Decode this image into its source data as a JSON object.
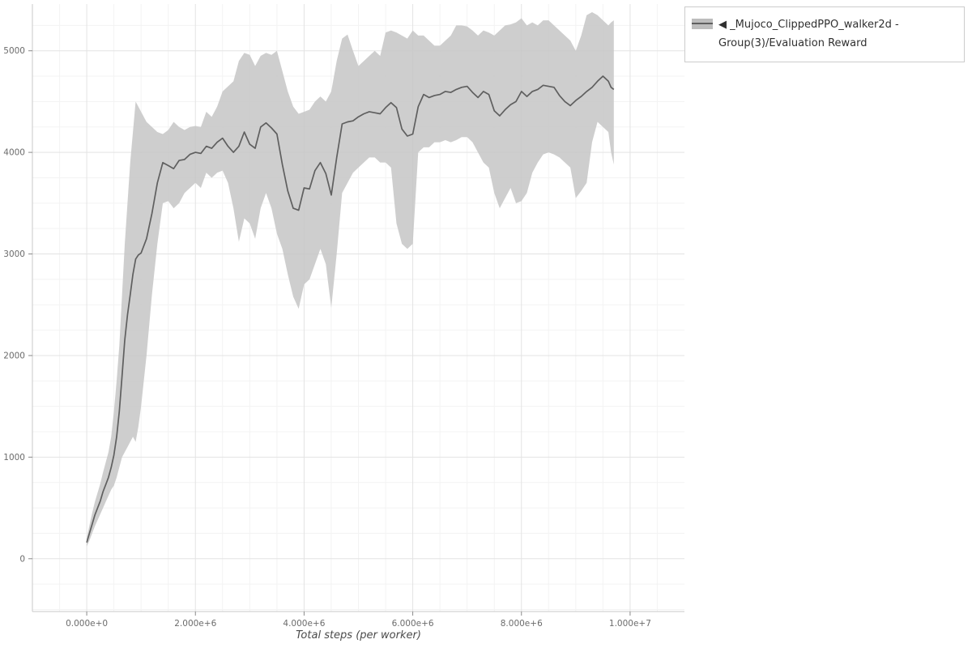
{
  "page": {
    "background": "#ffffff"
  },
  "legend": {
    "label": "◀ _Mujoco_ClippedPPO_walker2d - Group(3)/Evaluation Reward"
  },
  "chart_data": {
    "type": "line",
    "title": "",
    "xlabel": "Total steps (per worker)",
    "ylabel": "",
    "legend_position": "top-right-outside",
    "grid": true,
    "xlim_steps_millions": [
      -1,
      11
    ],
    "ylim": [
      -520,
      5460
    ],
    "x_tick_values_millions": [
      0,
      2,
      4,
      6,
      8,
      10
    ],
    "x_tick_labels": [
      "0.000e+0",
      "2.000e+6",
      "4.000e+6",
      "6.000e+6",
      "8.000e+6",
      "1.000e+7"
    ],
    "y_tick_values": [
      0,
      1000,
      2000,
      3000,
      4000,
      5000
    ],
    "y_tick_labels": [
      "0",
      "1000",
      "2000",
      "3000",
      "4000",
      "5000"
    ],
    "colors": {
      "mean_line": "#5f5f5f",
      "band_fill": "#c6c6c6",
      "grid_major": "#e3e3e3",
      "grid_minor": "#f3f3f3",
      "axis_line": "#c9c9c9",
      "tick_mark": "#8a8a8a",
      "tick_label": "#6b6b6b",
      "axis_title": "#4a4a4a"
    },
    "series": [
      {
        "name": "_Mujoco_ClippedPPO_walker2d - Group(3)/Evaluation Reward",
        "x_steps_millions": [
          0,
          0.05,
          0.1,
          0.15,
          0.2,
          0.25,
          0.3,
          0.35,
          0.4,
          0.45,
          0.5,
          0.55,
          0.6,
          0.65,
          0.7,
          0.75,
          0.8,
          0.85,
          0.9,
          0.95,
          1.0,
          1.1,
          1.2,
          1.3,
          1.4,
          1.5,
          1.6,
          1.7,
          1.8,
          1.9,
          2.0,
          2.1,
          2.2,
          2.3,
          2.4,
          2.5,
          2.6,
          2.7,
          2.8,
          2.9,
          3.0,
          3.1,
          3.2,
          3.3,
          3.4,
          3.5,
          3.6,
          3.7,
          3.8,
          3.9,
          4.0,
          4.1,
          4.2,
          4.3,
          4.4,
          4.5,
          4.6,
          4.7,
          4.8,
          4.9,
          5.0,
          5.1,
          5.2,
          5.3,
          5.4,
          5.5,
          5.6,
          5.7,
          5.8,
          5.9,
          6.0,
          6.1,
          6.2,
          6.3,
          6.4,
          6.5,
          6.6,
          6.7,
          6.8,
          6.9,
          7.0,
          7.1,
          7.2,
          7.3,
          7.4,
          7.5,
          7.6,
          7.7,
          7.8,
          7.9,
          8.0,
          8.1,
          8.2,
          8.3,
          8.4,
          8.5,
          8.6,
          8.7,
          8.8,
          8.9,
          9.0,
          9.1,
          9.2,
          9.3,
          9.4,
          9.5,
          9.6,
          9.65,
          9.7
        ],
        "mean": [
          160,
          250,
          340,
          430,
          500,
          570,
          660,
          730,
          800,
          900,
          1020,
          1200,
          1450,
          1800,
          2150,
          2400,
          2600,
          2800,
          2950,
          2990,
          3010,
          3150,
          3400,
          3700,
          3900,
          3870,
          3840,
          3920,
          3930,
          3980,
          4000,
          3990,
          4060,
          4040,
          4100,
          4140,
          4060,
          4000,
          4060,
          4200,
          4080,
          4040,
          4250,
          4290,
          4240,
          4180,
          3880,
          3620,
          3450,
          3430,
          3650,
          3640,
          3820,
          3900,
          3790,
          3580,
          3950,
          4280,
          4300,
          4310,
          4350,
          4380,
          4400,
          4390,
          4380,
          4440,
          4490,
          4440,
          4230,
          4160,
          4180,
          4450,
          4570,
          4540,
          4560,
          4570,
          4600,
          4590,
          4620,
          4640,
          4650,
          4590,
          4540,
          4600,
          4570,
          4410,
          4360,
          4420,
          4470,
          4500,
          4600,
          4550,
          4600,
          4620,
          4660,
          4650,
          4640,
          4560,
          4500,
          4460,
          4510,
          4550,
          4600,
          4640,
          4700,
          4750,
          4700,
          4640,
          4620
        ],
        "band_lower": [
          120,
          180,
          250,
          320,
          380,
          440,
          500,
          560,
          620,
          680,
          720,
          800,
          900,
          1000,
          1050,
          1100,
          1150,
          1200,
          1150,
          1300,
          1500,
          2000,
          2600,
          3100,
          3500,
          3520,
          3450,
          3500,
          3600,
          3650,
          3700,
          3650,
          3800,
          3750,
          3800,
          3820,
          3700,
          3450,
          3120,
          3350,
          3300,
          3150,
          3450,
          3600,
          3450,
          3200,
          3050,
          2800,
          2580,
          2460,
          2700,
          2750,
          2900,
          3050,
          2900,
          2470,
          3000,
          3600,
          3700,
          3800,
          3850,
          3900,
          3950,
          3950,
          3900,
          3900,
          3850,
          3300,
          3100,
          3050,
          3100,
          4000,
          4050,
          4050,
          4100,
          4100,
          4120,
          4100,
          4120,
          4150,
          4150,
          4100,
          4000,
          3900,
          3850,
          3600,
          3450,
          3550,
          3650,
          3500,
          3520,
          3600,
          3800,
          3900,
          3980,
          4000,
          3980,
          3950,
          3900,
          3850,
          3550,
          3620,
          3700,
          4100,
          4300,
          4250,
          4200,
          4000,
          3880
        ],
        "band_upper": [
          200,
          330,
          450,
          560,
          650,
          740,
          850,
          950,
          1050,
          1200,
          1450,
          1750,
          2100,
          2600,
          3100,
          3500,
          3900,
          4200,
          4500,
          4450,
          4400,
          4300,
          4250,
          4200,
          4180,
          4220,
          4300,
          4250,
          4220,
          4250,
          4260,
          4250,
          4400,
          4350,
          4450,
          4600,
          4650,
          4700,
          4900,
          4980,
          4960,
          4850,
          4950,
          4980,
          4960,
          5000,
          4800,
          4600,
          4450,
          4380,
          4400,
          4420,
          4500,
          4550,
          4500,
          4600,
          4900,
          5120,
          5160,
          5000,
          4850,
          4900,
          4950,
          5000,
          4950,
          5180,
          5200,
          5180,
          5150,
          5120,
          5200,
          5150,
          5150,
          5100,
          5050,
          5050,
          5100,
          5150,
          5250,
          5250,
          5240,
          5200,
          5150,
          5200,
          5180,
          5150,
          5200,
          5250,
          5260,
          5280,
          5320,
          5250,
          5280,
          5250,
          5300,
          5300,
          5250,
          5200,
          5150,
          5100,
          5000,
          5150,
          5350,
          5380,
          5350,
          5300,
          5250,
          5280,
          5300
        ]
      }
    ]
  }
}
